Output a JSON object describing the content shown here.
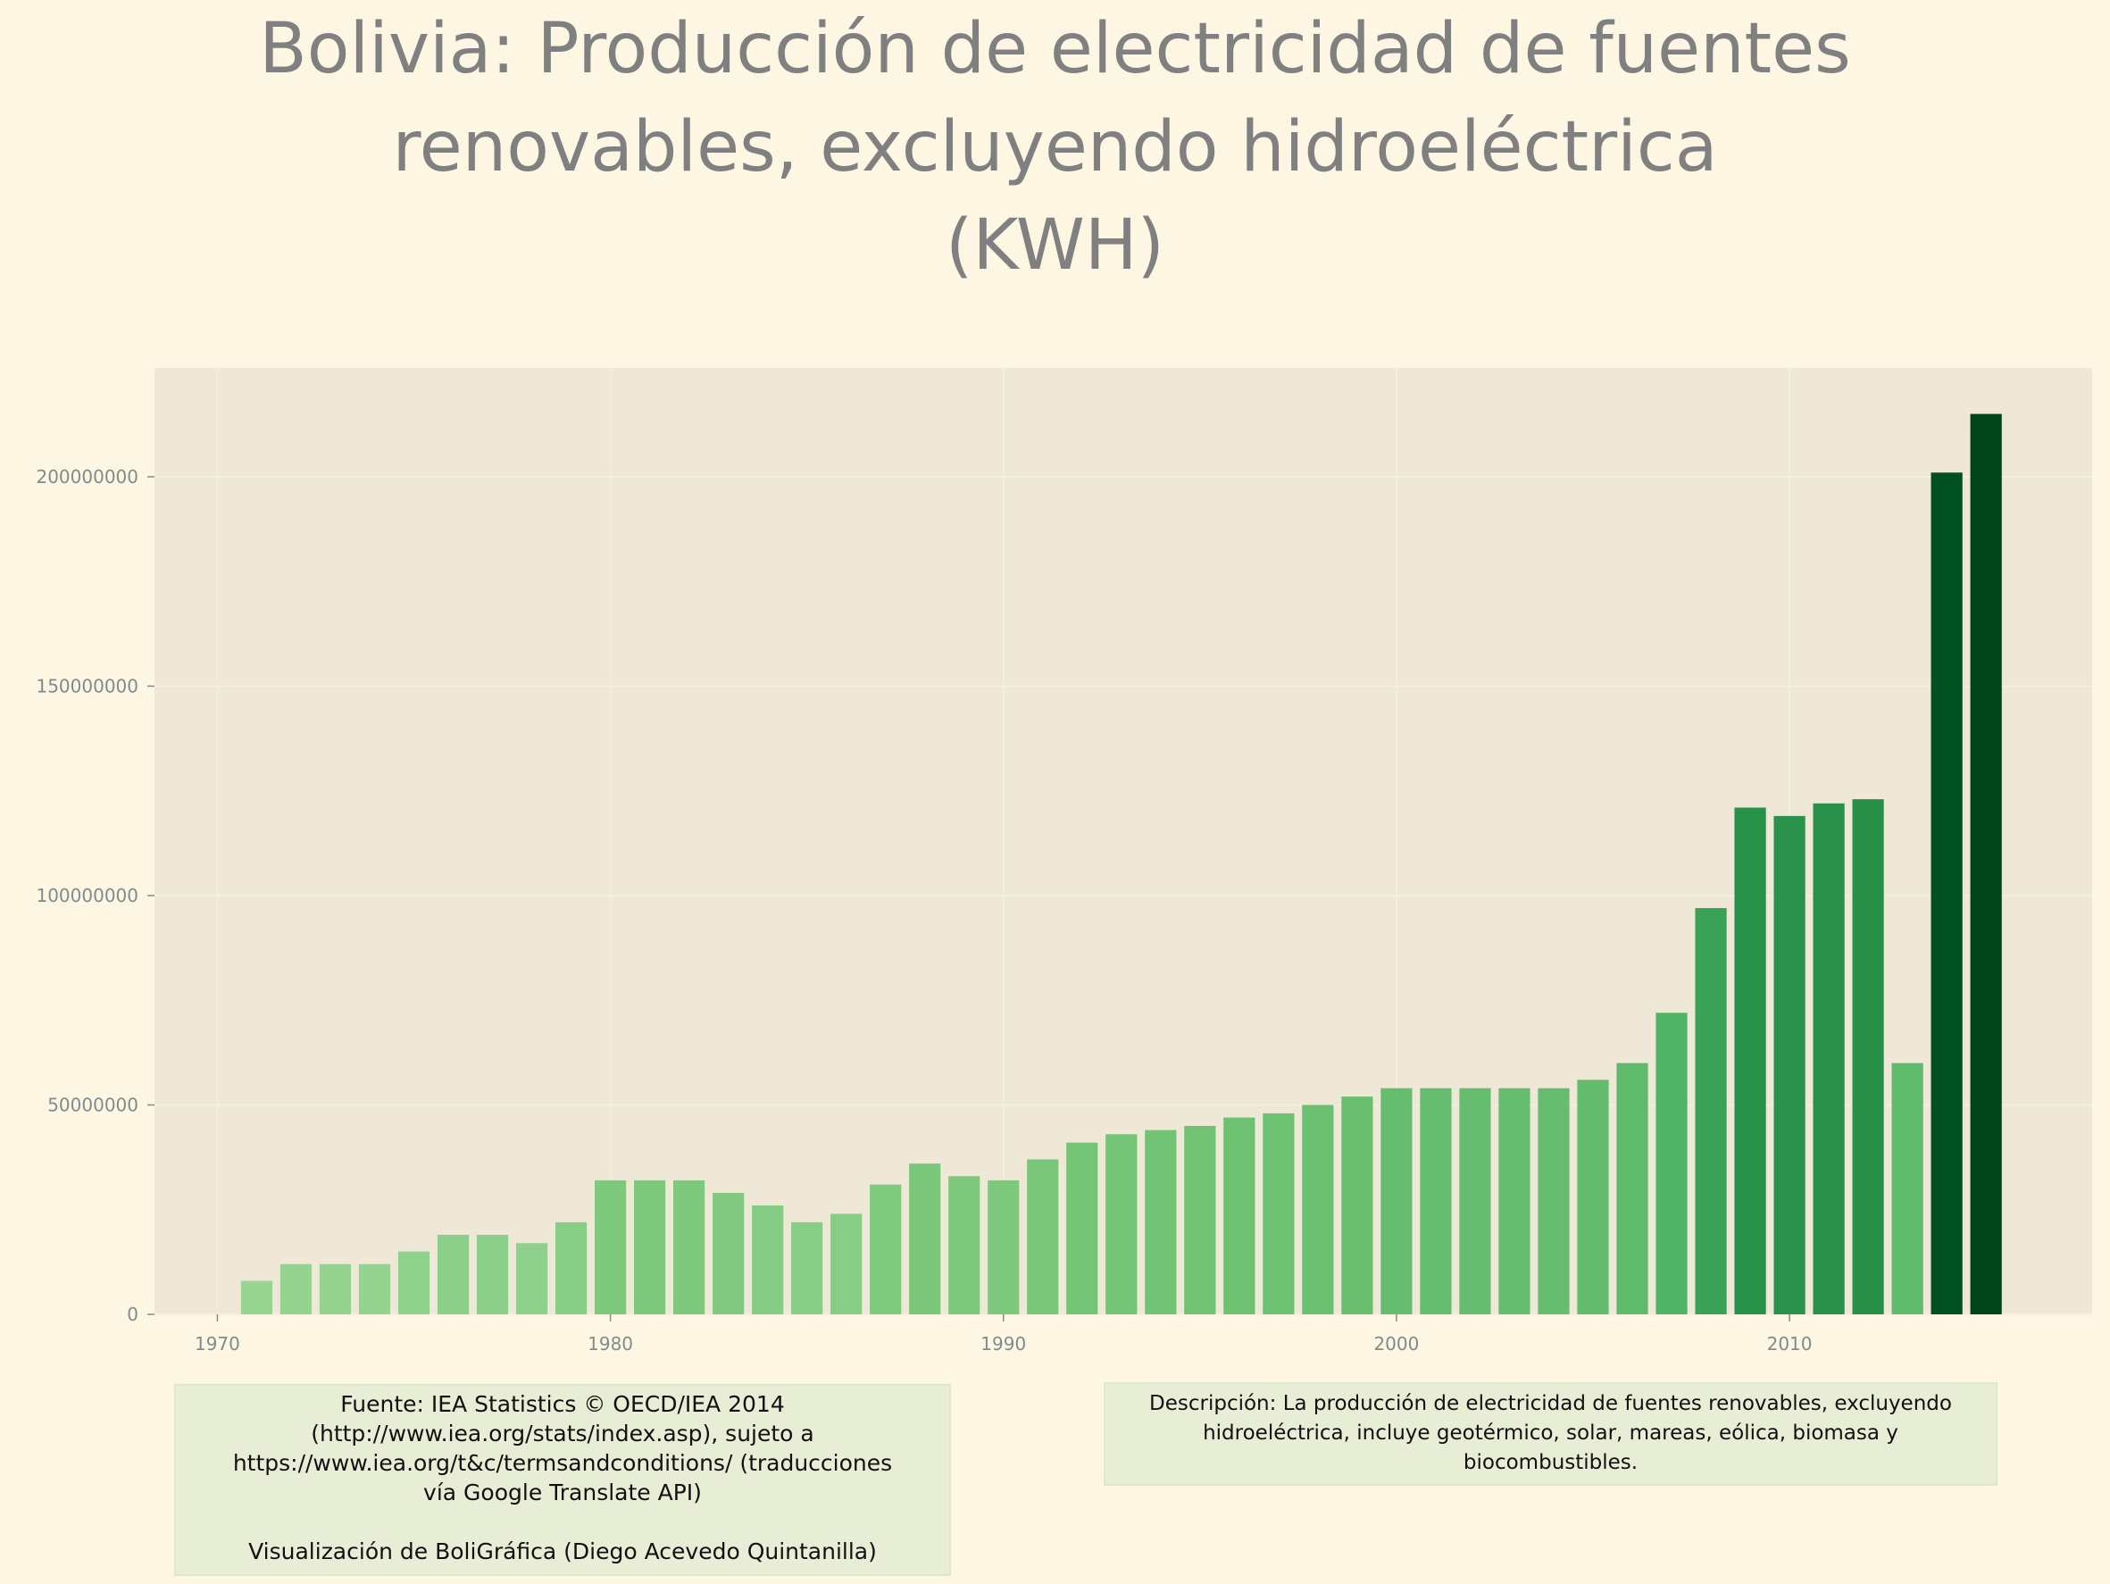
{
  "title_lines": [
    "Bolivia:  Producción de electricidad de fuentes",
    "renovables, excluyendo hidroeléctrica",
    "(KWH)"
  ],
  "source": {
    "line1": "Fuente: IEA Statistics © OECD/IEA 2014",
    "line2": "(http://www.iea.org/stats/index.asp), sujeto a",
    "line3": "https://www.iea.org/t&c/termsandconditions/ (traducciones",
    "line4": "vía Google Translate API)",
    "credit": "Visualización de BoliGráfica (Diego Acevedo Quintanilla)"
  },
  "description": {
    "line1": "Descripción: La producción de electricidad de fuentes renovables, excluyendo",
    "line2": "hidroeléctrica, incluye geotérmico, solar, mareas, eólica, biomasa y",
    "line3": "biocombustibles."
  },
  "colors": {
    "page_background": "#fdf6e3",
    "plot_background": "#efe8d6",
    "title": "#808080",
    "tick_label": "#7f8c8d",
    "bar_scale": [
      "#c7e9c0",
      "#a1d99b",
      "#74c476",
      "#41ab5d",
      "#238b45",
      "#006d2c",
      "#00441b"
    ]
  },
  "chart_data": {
    "type": "bar",
    "x": [
      1971,
      1972,
      1973,
      1974,
      1975,
      1976,
      1977,
      1978,
      1979,
      1980,
      1981,
      1982,
      1983,
      1984,
      1985,
      1986,
      1987,
      1988,
      1989,
      1990,
      1991,
      1992,
      1993,
      1994,
      1995,
      1996,
      1997,
      1998,
      1999,
      2000,
      2001,
      2002,
      2003,
      2004,
      2005,
      2006,
      2007,
      2008,
      2009,
      2010,
      2011,
      2012,
      2013,
      2014,
      2015
    ],
    "values": [
      8000000,
      12000000,
      12000000,
      12000000,
      15000000,
      19000000,
      19000000,
      17000000,
      22000000,
      32000000,
      32000000,
      32000000,
      29000000,
      26000000,
      22000000,
      24000000,
      31000000,
      36000000,
      33000000,
      32000000,
      37000000,
      41000000,
      43000000,
      44000000,
      45000000,
      47000000,
      48000000,
      50000000,
      52000000,
      54000000,
      54000000,
      54000000,
      54000000,
      54000000,
      56000000,
      60000000,
      72000000,
      97000000,
      121000000,
      119000000,
      122000000,
      123000000,
      60000000,
      201000000,
      215000000
    ],
    "x_ticks": [
      1970,
      1980,
      1990,
      2000,
      2010
    ],
    "x_tick_labels": [
      "1970",
      "1980",
      "1990",
      "2000",
      "2010"
    ],
    "y_ticks": [
      0,
      50000000,
      100000000,
      150000000,
      200000000
    ],
    "y_tick_labels": [
      "0",
      "50000000",
      "100000000",
      "150000000",
      "200000000"
    ],
    "xlim": [
      1968.4,
      2017.7
    ],
    "ylim": [
      0,
      226000000
    ],
    "grid": true,
    "legend": "none"
  }
}
